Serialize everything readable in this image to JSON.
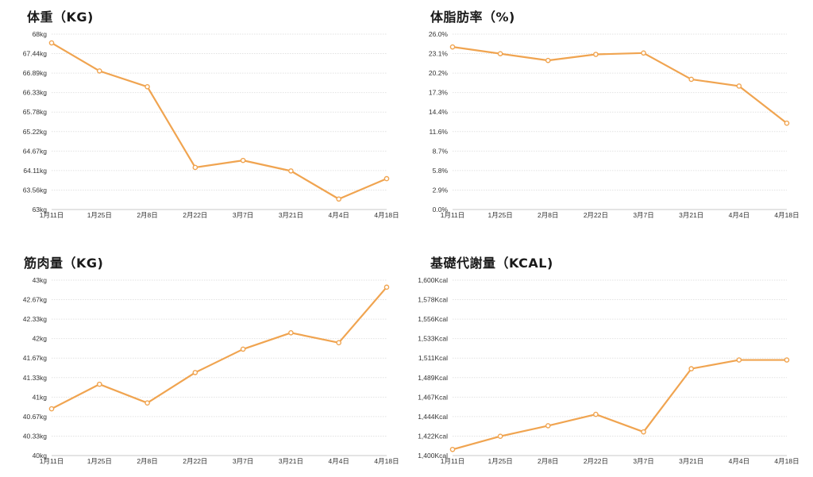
{
  "charts": [
    {
      "title": "体重（KG)",
      "chart_data": {
        "type": "line",
        "categories": [
          "1月11日",
          "1月25日",
          "2月8日",
          "2月22日",
          "3月7日",
          "3月21日",
          "4月4日",
          "4月18日"
        ],
        "values": [
          67.75,
          66.95,
          66.5,
          64.2,
          64.4,
          64.1,
          63.3,
          63.88
        ],
        "ylim": [
          63,
          68
        ],
        "ytick_labels": [
          "68kg",
          "67.44kg",
          "66.89kg",
          "66.33kg",
          "65.78kg",
          "65.22kg",
          "64.67kg",
          "64.11kg",
          "63.56kg",
          "63kg"
        ],
        "grid": true,
        "color": "#f0a450"
      }
    },
    {
      "title": "体脂肪率（%)",
      "chart_data": {
        "type": "line",
        "categories": [
          "1月11日",
          "1月25日",
          "2月8日",
          "2月22日",
          "3月7日",
          "3月21日",
          "4月4日",
          "4月18日"
        ],
        "values": [
          24.1,
          23.1,
          22.1,
          23.0,
          23.2,
          19.3,
          18.3,
          12.8
        ],
        "ylim": [
          0,
          26
        ],
        "ytick_labels": [
          "26.0%",
          "23.1%",
          "20.2%",
          "17.3%",
          "14.4%",
          "11.6%",
          "8.7%",
          "5.8%",
          "2.9%",
          "0.0%"
        ],
        "grid": true,
        "color": "#f0a450"
      }
    },
    {
      "title": "筋肉量（KG)",
      "chart_data": {
        "type": "line",
        "categories": [
          "1月11日",
          "1月25日",
          "2月8日",
          "2月22日",
          "3月7日",
          "3月21日",
          "4月4日",
          "4月18日"
        ],
        "values": [
          40.8,
          41.22,
          40.9,
          41.42,
          41.82,
          42.1,
          41.93,
          42.88
        ],
        "ylim": [
          40,
          43
        ],
        "ytick_labels": [
          "43kg",
          "42.67kg",
          "42.33kg",
          "42kg",
          "41.67kg",
          "41.33kg",
          "41kg",
          "40.67kg",
          "40.33kg",
          "40kg"
        ],
        "grid": true,
        "color": "#f0a450"
      }
    },
    {
      "title": "基礎代謝量（KCAL)",
      "chart_data": {
        "type": "line",
        "categories": [
          "1月11日",
          "1月25日",
          "2月8日",
          "2月22日",
          "3月7日",
          "3月21日",
          "4月4日",
          "4月18日"
        ],
        "values": [
          1407,
          1422,
          1434,
          1447,
          1427,
          1499,
          1509,
          1509
        ],
        "ylim": [
          1400,
          1600
        ],
        "ytick_labels": [
          "1,600Kcal",
          "1,578Kcal",
          "1,556Kcal",
          "1,533Kcal",
          "1,511Kcal",
          "1,489Kcal",
          "1,467Kcal",
          "1,444Kcal",
          "1,422Kcal",
          "1,400Kcal"
        ],
        "grid": true,
        "color": "#f0a450"
      }
    }
  ]
}
